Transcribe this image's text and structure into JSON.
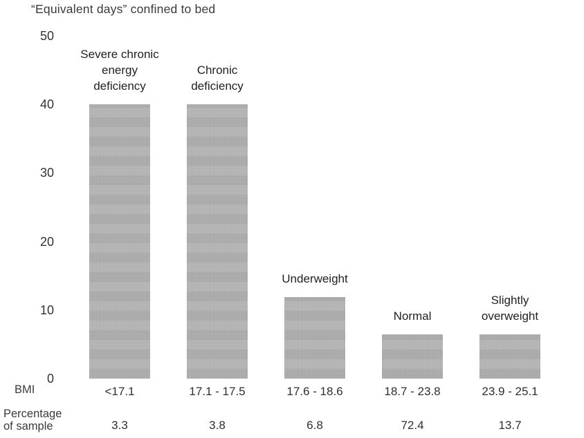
{
  "title": "“Equivalent days” confined to bed",
  "axis": {
    "row_label_bmi": "BMI",
    "row_label_percentage": [
      "Percentage",
      "of sample"
    ]
  },
  "chart_data": {
    "type": "bar",
    "title": "“Equivalent days” confined to bed",
    "categories": [
      "Severe chronic energy deficiency",
      "Chronic deficiency",
      "Underweight",
      "Normal",
      "Slightly overweight"
    ],
    "category_label_lines": [
      [
        "Severe chronic",
        "energy",
        "deficiency"
      ],
      [
        "Chronic",
        "deficiency"
      ],
      [
        "Underweight"
      ],
      [
        "Normal"
      ],
      [
        "Slightly",
        "overweight"
      ]
    ],
    "values": [
      40,
      40,
      11.9,
      6.5,
      6.5
    ],
    "bmi_ranges": [
      "<17.1",
      "17.1 - 17.5",
      "17.6 - 18.6",
      "18.7 - 23.8",
      "23.9 - 25.1"
    ],
    "percentage_of_sample": [
      "3.3",
      "3.8",
      "6.8",
      "72.4",
      "13.7"
    ],
    "xlabel": "BMI",
    "ylabel": "",
    "ylim": [
      0,
      50
    ],
    "yticks": [
      50,
      40,
      30,
      20,
      10,
      0
    ],
    "grid": false,
    "legend": false,
    "bar_color": "#b5b5b5"
  }
}
